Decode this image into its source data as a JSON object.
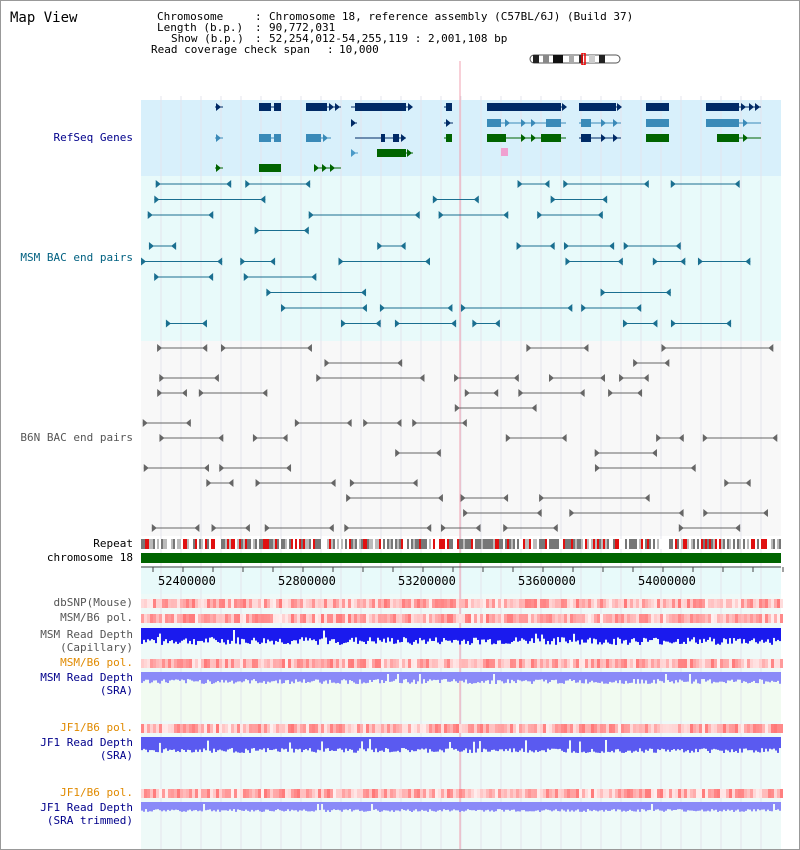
{
  "page": {
    "title": "Map View"
  },
  "header": {
    "chromosome_key": "Chromosome",
    "chromosome_val": "Chromosome 18, reference assembly (C57BL/6J) (Build 37)",
    "length_key": "Length (b.p.)",
    "length_val": "90,772,031",
    "show_key": "Show (b.p.)",
    "show_val": "52,254,012-54,255,119 : 2,001,108 bp",
    "coverage_key": "Read coverage check span",
    "coverage_val": "10,000"
  },
  "tracks": {
    "refseq": "RefSeq Genes",
    "msm_bac": "MSM BAC end pairs",
    "b6n_bac": "B6N BAC end pairs",
    "repeat": "Repeat",
    "chromosome": "chromosome 18",
    "dbsnp": "dbSNP(Mouse)",
    "msm_b6_pol_1": "MSM/B6 pol.",
    "msm_depth_cap_1": "MSM Read Depth",
    "msm_depth_cap_2": "(Capillary)",
    "msm_b6_pol_2": "MSM/B6 pol.",
    "msm_depth_sra_1": "MSM Read Depth",
    "msm_depth_sra_2": "(SRA)",
    "jf1_pol_1": "JF1/B6 pol.",
    "jf1_depth_1": "JF1 Read Depth",
    "jf1_depth_2": "(SRA)",
    "jf1_pol_2": "JF1/B6 pol.",
    "jf1_trim_1": "JF1 Read Depth",
    "jf1_trim_2": "(SRA trimmed)"
  },
  "axis": {
    "ticks": [
      "52400000",
      "52800000",
      "53200000",
      "53600000",
      "54000000"
    ]
  },
  "colors": {
    "refseq_bg": "#d8f0fb",
    "msm_bg": "#e8fafa",
    "navy": "#002a66",
    "steel": "#3a8ab8",
    "green": "#006400",
    "chrom_bar": "#006400",
    "repeat_red": "#e01010",
    "depth_blue": "#1a1aee",
    "depth_lav": "#8a8af8",
    "depth_jf1": "#5a5af0"
  }
}
